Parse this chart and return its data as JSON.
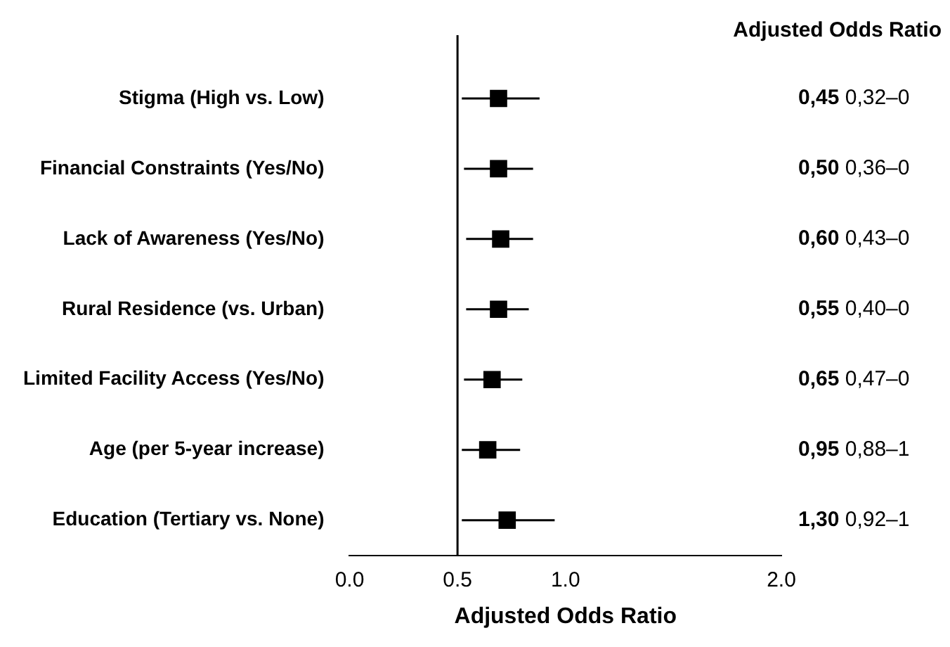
{
  "chart_data": {
    "type": "scatter",
    "orientation": "horizontal",
    "title": "Adjusted Odds Ratio",
    "xlabel": "Adjusted Odds Ratio",
    "categories": [
      "Stigma (High vs. Low)",
      "Financial Constraints (Yes/No)",
      "Lack of Awareness (Yes/No)",
      "Rural Residence (vs. Urban)",
      "Limited Facility Access (Yes/No)",
      "Age (per 5-year increase)",
      "Education (Tertiary vs. None)"
    ],
    "values": [
      0.69,
      0.69,
      0.7,
      0.69,
      0.66,
      0.64,
      0.73
    ],
    "errors": [
      [
        0.52,
        0.88
      ],
      [
        0.53,
        0.85
      ],
      [
        0.54,
        0.85
      ],
      [
        0.54,
        0.83
      ],
      [
        0.53,
        0.8
      ],
      [
        0.52,
        0.79
      ],
      [
        0.52,
        0.95
      ]
    ],
    "color": "#000000",
    "marker": "square",
    "grid": false,
    "xlim": [
      0,
      2
    ],
    "xticks": [
      {
        "value": 0,
        "label": "0.0"
      },
      0.5,
      {
        "value": 1,
        "label": "1.0"
      },
      {
        "value": 2,
        "label": "2.0"
      }
    ],
    "ref_lines": [
      {
        "axis": "x",
        "value": 0.5,
        "color": "#000000"
      }
    ],
    "annotations": [
      "0,45 0,32–0",
      "0,50 0,36–0",
      "0,60 0,43–0",
      "0,55 0,40–0",
      "0,65 0,47–0",
      "0,95 0,88–1",
      "1,30 0,92–1"
    ]
  }
}
